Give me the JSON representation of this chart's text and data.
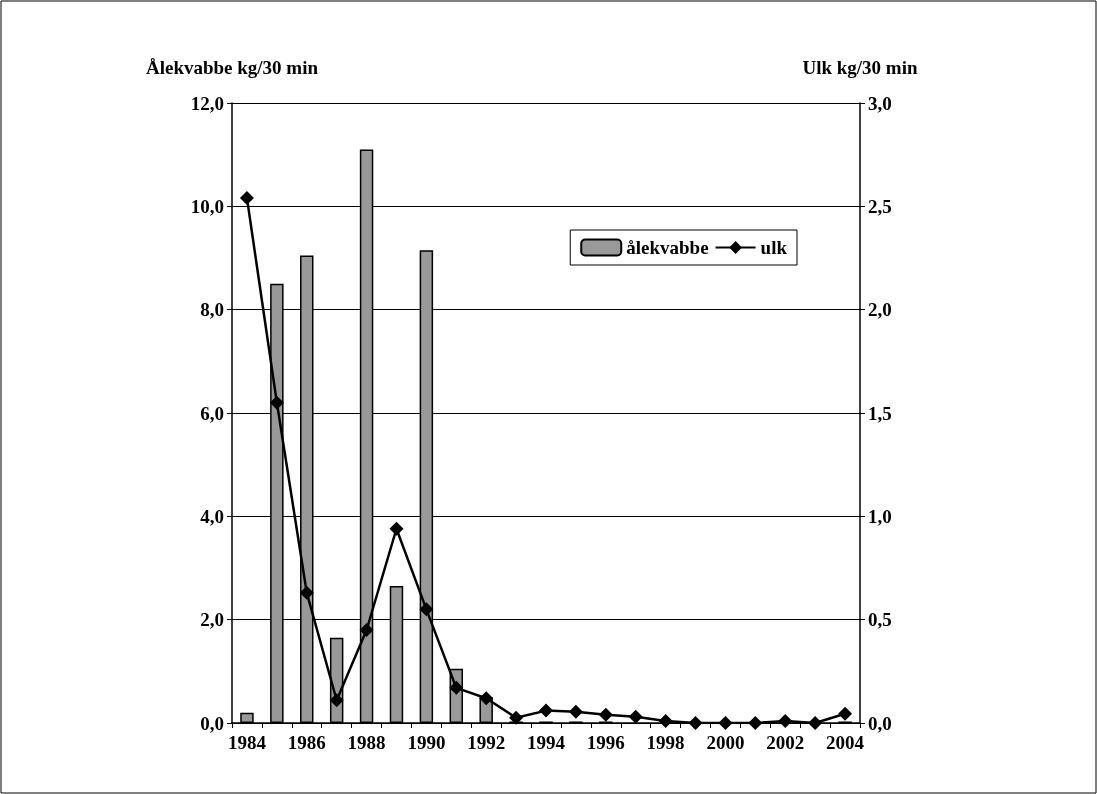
{
  "chart_data": {
    "type": "bar",
    "ylabel": "Ålekvabbe kg/30 min",
    "y2label": "Ulk kg/30 min",
    "categories": [
      "1984",
      null,
      "1986",
      null,
      "1988",
      null,
      "1990",
      null,
      "1992",
      null,
      "1994",
      null,
      "1996",
      null,
      "1998",
      null,
      "2000",
      null,
      "2002",
      null,
      "2004"
    ],
    "series": [
      {
        "name": "ålekvabbe",
        "color": "#999999",
        "values": [
          0.2,
          8.5,
          9.05,
          1.65,
          11.1,
          2.65,
          9.15,
          1.05,
          0.5,
          0.03,
          0.03,
          0.03,
          0.03,
          0,
          0,
          0,
          0,
          0,
          0,
          0,
          0.03
        ]
      },
      {
        "name": "ulk",
        "type": "line",
        "axis": "y2",
        "color": "#000000",
        "marker": "diamond",
        "values": [
          2.54,
          1.55,
          0.63,
          0.11,
          0.45,
          0.94,
          0.55,
          0.17,
          0.12,
          0.025,
          0.06,
          0.055,
          0.04,
          0.03,
          0.01,
          0,
          0,
          0,
          0.01,
          0,
          0.045
        ]
      }
    ],
    "ylim": [
      0,
      12
    ],
    "yticks": [
      {
        "value": 0,
        "label": "0,0"
      },
      {
        "value": 2,
        "label": "2,0"
      },
      {
        "value": 4,
        "label": "4,0"
      },
      {
        "value": 6,
        "label": "6,0"
      },
      {
        "value": 8,
        "label": "8,0"
      },
      {
        "value": 10,
        "label": "10,0"
      },
      {
        "value": 12,
        "label": "12,0"
      }
    ],
    "y2lim": [
      0,
      3
    ],
    "y2ticks": [
      {
        "value": 0,
        "label": "0,0"
      },
      {
        "value": 0.5,
        "label": "0,5"
      },
      {
        "value": 1,
        "label": "1,0"
      },
      {
        "value": 1.5,
        "label": "1,5"
      },
      {
        "value": 2,
        "label": "2,0"
      },
      {
        "value": 2.5,
        "label": "2,5"
      },
      {
        "value": 3,
        "label": "3,0"
      }
    ],
    "grid": "y",
    "legend": "top right"
  }
}
